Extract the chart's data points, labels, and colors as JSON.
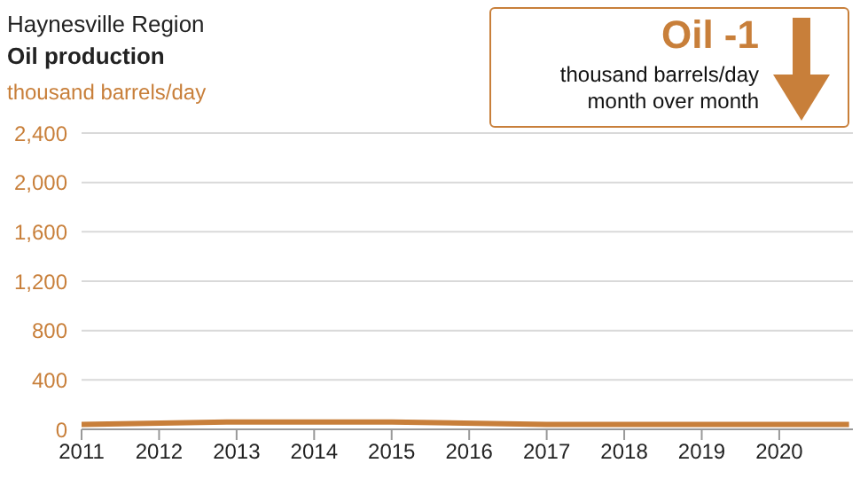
{
  "chart_data": {
    "type": "line",
    "title": "Haynesville Region",
    "subtitle": "Oil production",
    "ylabel": "thousand barrels/day",
    "x": [
      2011,
      2013,
      2015,
      2017,
      2019,
      2020.9
    ],
    "series": [
      {
        "color": "#c87f3a",
        "values": [
          40,
          60,
          60,
          40,
          40,
          40
        ]
      }
    ],
    "xlim": [
      2011,
      2020.95
    ],
    "xticks": [
      2011,
      2012,
      2013,
      2014,
      2015,
      2016,
      2017,
      2018,
      2019,
      2020
    ],
    "ylim": [
      0,
      2400
    ],
    "yticks": [
      0,
      400,
      800,
      {
        "value": 1200,
        "label": "1,200"
      },
      {
        "value": 1600,
        "label": "1,600"
      },
      {
        "value": 2000,
        "label": "2,000"
      },
      {
        "value": 2400,
        "label": "2,400"
      }
    ],
    "grid": "y",
    "annotations": [
      "Oil -1",
      "thousand barrels/day",
      "month over month"
    ]
  }
}
